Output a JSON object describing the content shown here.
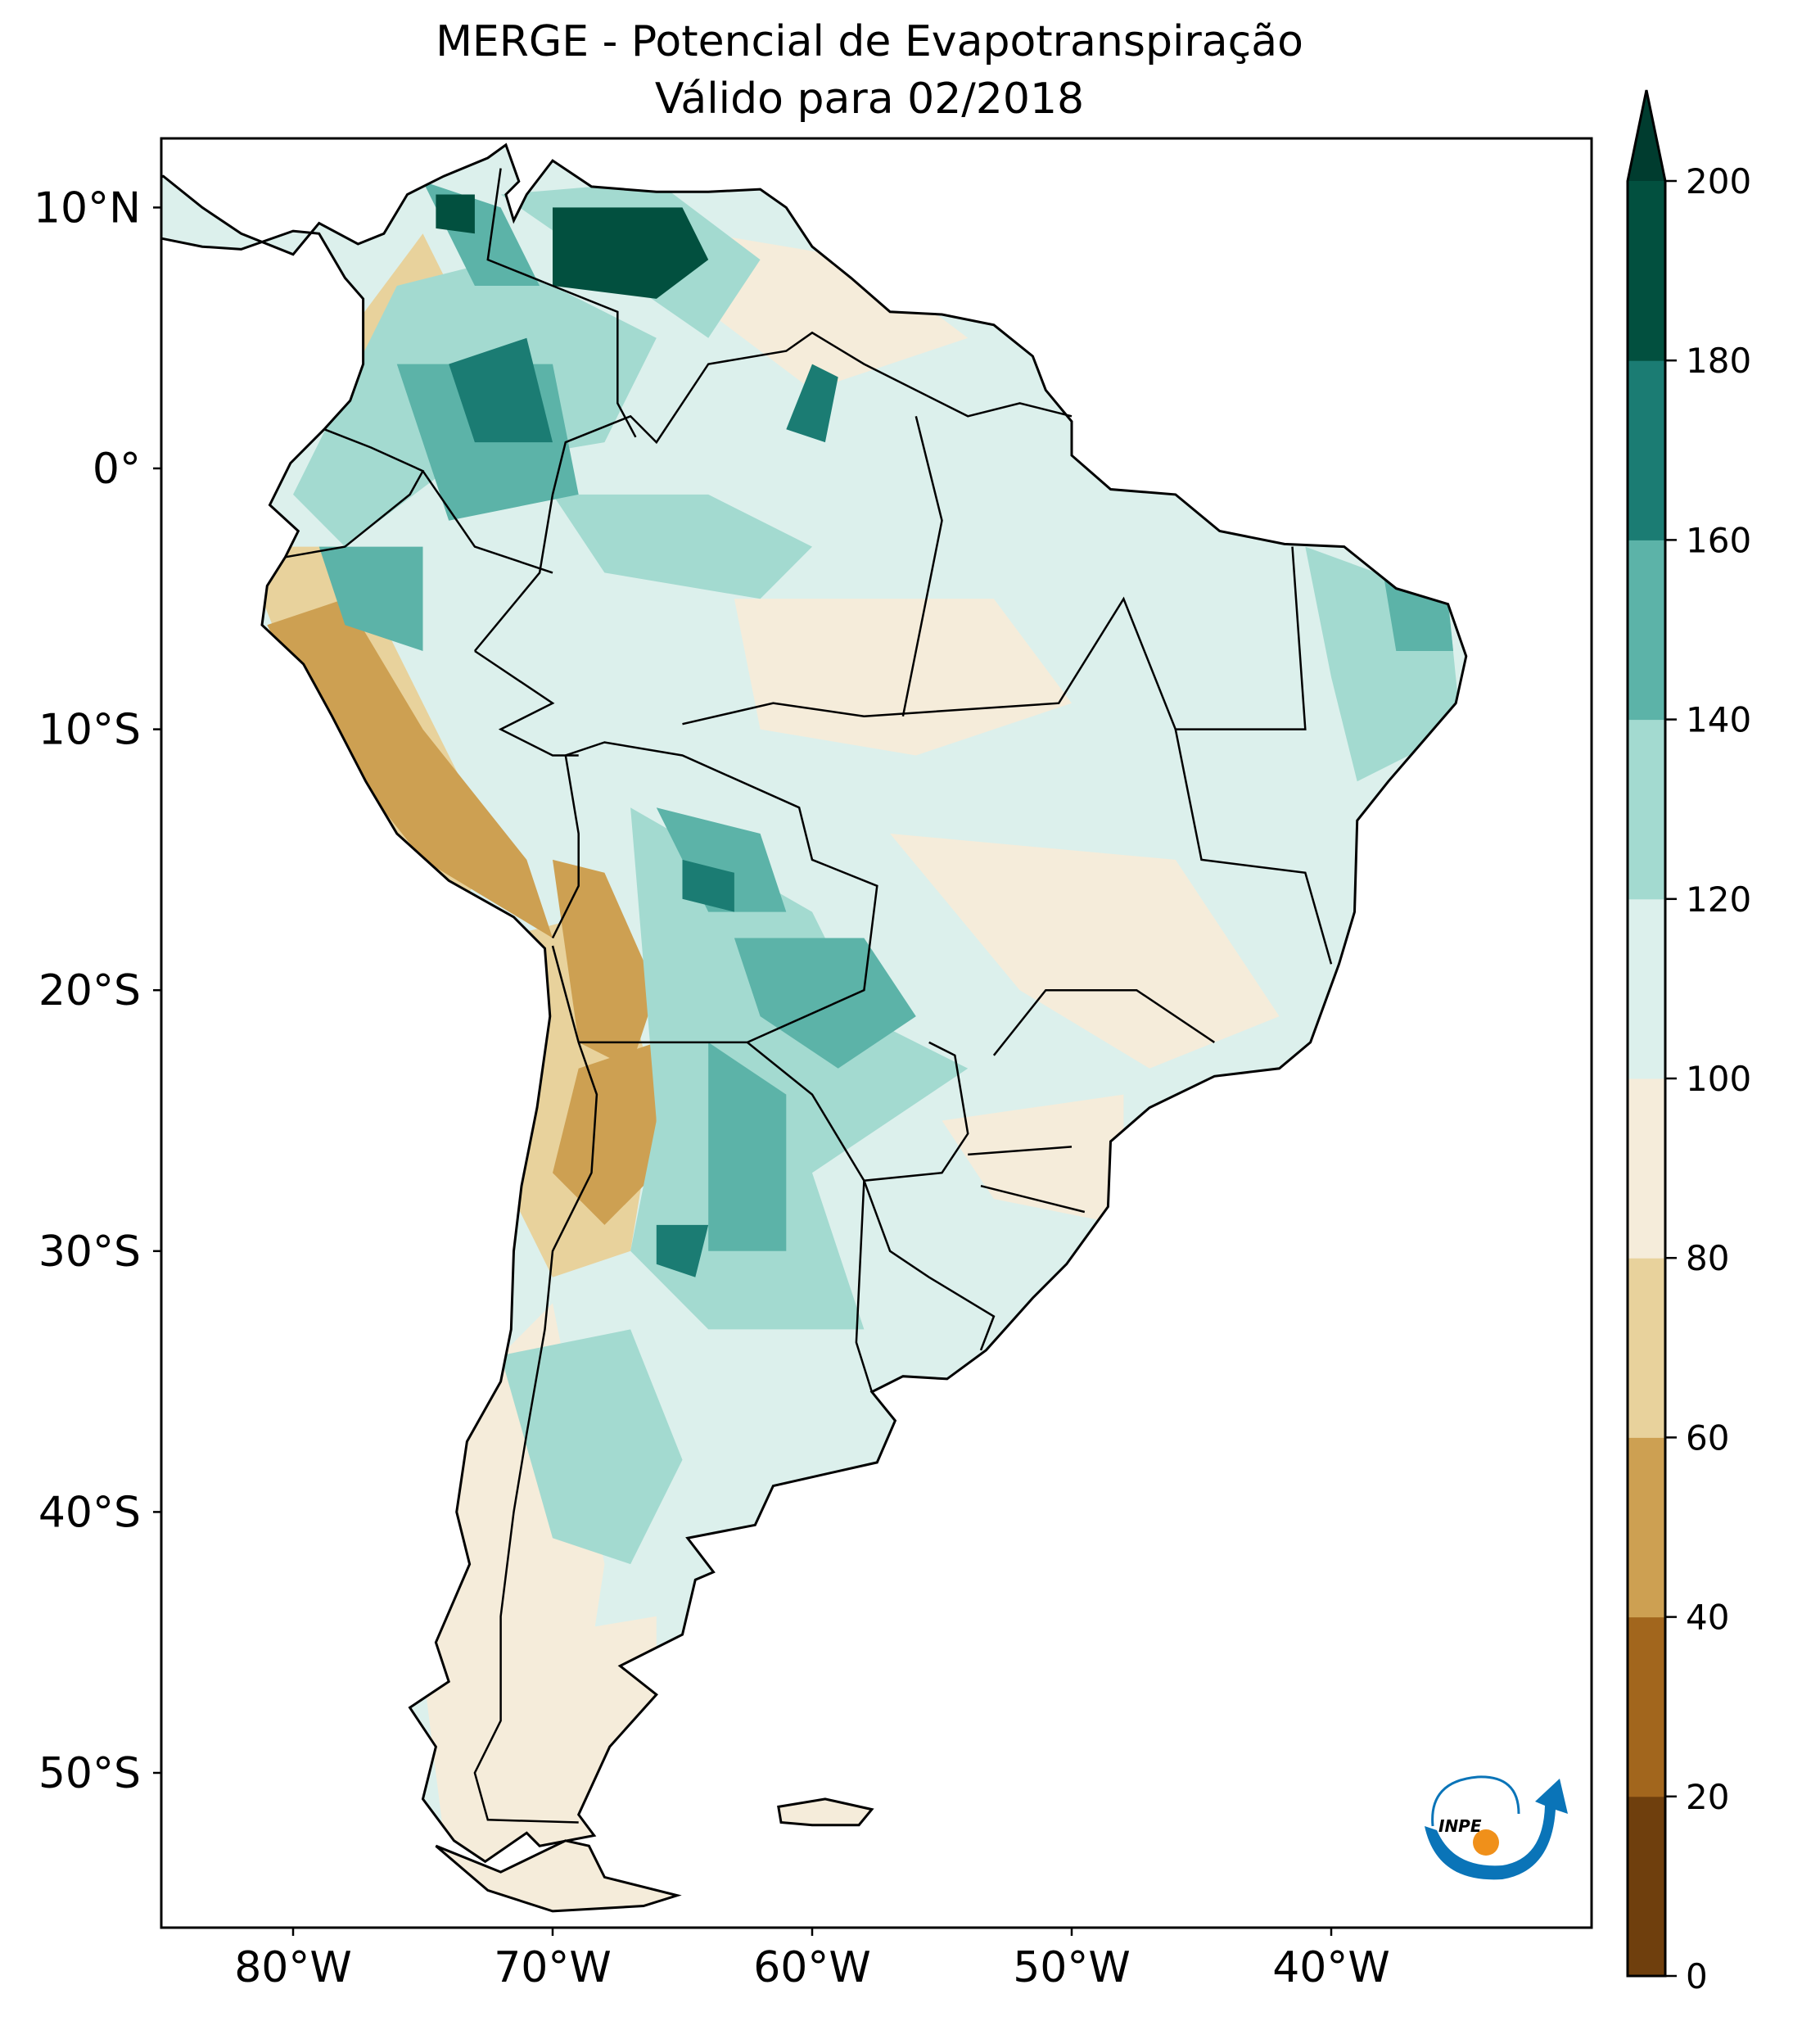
{
  "title": {
    "line1": "MERGE - Potencial de Evapotranspiração",
    "line2": "Válido para 02/2018"
  },
  "map": {
    "lon_range": [
      -85,
      -30
    ],
    "lat_range": [
      -56,
      12.6
    ],
    "lat_ticks": [
      {
        "value": 10,
        "label": "10°N"
      },
      {
        "value": 0,
        "label": "0°"
      },
      {
        "value": -10,
        "label": "10°S"
      },
      {
        "value": -20,
        "label": "20°S"
      },
      {
        "value": -30,
        "label": "30°S"
      },
      {
        "value": -40,
        "label": "40°S"
      },
      {
        "value": -50,
        "label": "50°S"
      }
    ],
    "lon_ticks": [
      {
        "value": -80,
        "label": "80°W"
      },
      {
        "value": -70,
        "label": "70°W"
      },
      {
        "value": -60,
        "label": "60°W"
      },
      {
        "value": -50,
        "label": "50°W"
      },
      {
        "value": -40,
        "label": "40°W"
      }
    ]
  },
  "colorbar": {
    "levels": [
      0,
      20,
      40,
      60,
      80,
      100,
      120,
      140,
      160,
      180,
      200
    ],
    "tick_labels": [
      "0",
      "20",
      "40",
      "60",
      "80",
      "100",
      "120",
      "140",
      "160",
      "180",
      "200"
    ],
    "colors": [
      "#6f3f0d",
      "#a2661d",
      "#cda052",
      "#e8d29c",
      "#f5ecda",
      "#dcf0ec",
      "#a3dad0",
      "#5cb3a8",
      "#1b7c73",
      "#02503f"
    ],
    "extend_color": "#003c2f",
    "extend": "max"
  },
  "logo": {
    "text": "INPE"
  }
}
